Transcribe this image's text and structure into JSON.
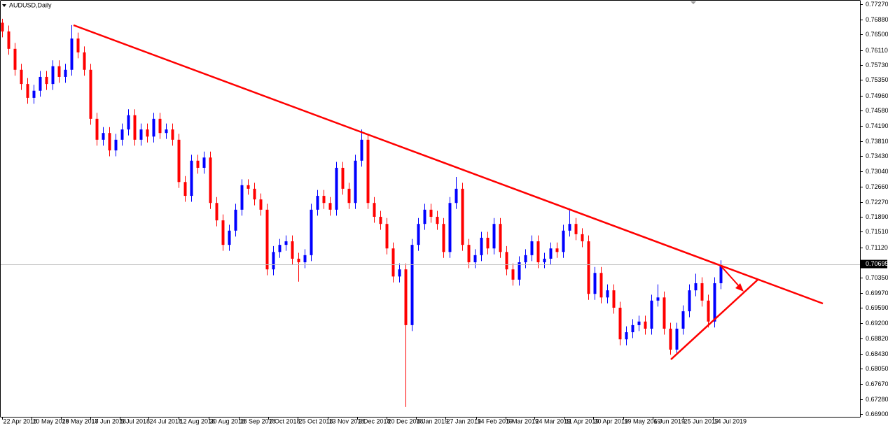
{
  "chart_data": {
    "type": "candlestick",
    "title": "AUDUSD,Daily",
    "up_color": "#0000ff",
    "down_color": "#ff0000",
    "current_price": 0.70695,
    "ylim": [
      0.6683,
      0.7734
    ],
    "xlim": [
      -0.2,
      136.1
    ],
    "yticks": [
      {
        "value": 0.7727,
        "label": "0.77270"
      },
      {
        "value": 0.7688,
        "label": "0.76880"
      },
      {
        "value": 0.765,
        "label": "0.76500"
      },
      {
        "value": 0.7611,
        "label": "0.76110"
      },
      {
        "value": 0.7573,
        "label": "0.75730"
      },
      {
        "value": 0.7535,
        "label": "0.75350"
      },
      {
        "value": 0.7496,
        "label": "0.74960"
      },
      {
        "value": 0.7458,
        "label": "0.74580"
      },
      {
        "value": 0.7419,
        "label": "0.74190"
      },
      {
        "value": 0.7381,
        "label": "0.73810"
      },
      {
        "value": 0.7343,
        "label": "0.73430"
      },
      {
        "value": 0.7304,
        "label": "0.73040"
      },
      {
        "value": 0.7266,
        "label": "0.72660"
      },
      {
        "value": 0.7227,
        "label": "0.72270"
      },
      {
        "value": 0.7189,
        "label": "0.71890"
      },
      {
        "value": 0.7151,
        "label": "0.71510"
      },
      {
        "value": 0.7112,
        "label": "0.71120"
      },
      {
        "value": 0.7035,
        "label": "0.70350"
      },
      {
        "value": 0.6997,
        "label": "0.69970"
      },
      {
        "value": 0.6959,
        "label": "0.69590"
      },
      {
        "value": 0.692,
        "label": "0.69200"
      },
      {
        "value": 0.6882,
        "label": "0.68820"
      },
      {
        "value": 0.6843,
        "label": "0.68430"
      },
      {
        "value": 0.6805,
        "label": "0.68050"
      },
      {
        "value": 0.6767,
        "label": "0.67670"
      },
      {
        "value": 0.6728,
        "label": "0.67280"
      },
      {
        "value": 0.669,
        "label": "0.66900"
      }
    ],
    "xticks": [
      {
        "value": 0,
        "label": "22 Apr 2018"
      },
      {
        "value": 4.7,
        "label": "10 May 2018"
      },
      {
        "value": 9.3,
        "label": "29 May 2018"
      },
      {
        "value": 14,
        "label": "17 Jun 2018"
      },
      {
        "value": 18.7,
        "label": "5 Jul 2018"
      },
      {
        "value": 23.2,
        "label": "24 Jul 2018"
      },
      {
        "value": 28,
        "label": "12 Aug 2018"
      },
      {
        "value": 32.8,
        "label": "30 Aug 2018"
      },
      {
        "value": 37.6,
        "label": "18 Sep 2018"
      },
      {
        "value": 42.2,
        "label": "7 Oct 2018"
      },
      {
        "value": 46.9,
        "label": "25 Oct 2018"
      },
      {
        "value": 51.7,
        "label": "13 Nov 2018"
      },
      {
        "value": 56.3,
        "label": "2 Dec 2018"
      },
      {
        "value": 61,
        "label": "20 Dec 2018"
      },
      {
        "value": 65.7,
        "label": "8 Jan 2019"
      },
      {
        "value": 70.3,
        "label": "27 Jan 2019"
      },
      {
        "value": 75.2,
        "label": "14 Feb 2019"
      },
      {
        "value": 79.9,
        "label": "5 Mar 2019"
      },
      {
        "value": 84.4,
        "label": "24 Mar 2019"
      },
      {
        "value": 89.2,
        "label": "11 Apr 2019"
      },
      {
        "value": 93.8,
        "label": "30 Apr 2019"
      },
      {
        "value": 98.6,
        "label": "19 May 2019"
      },
      {
        "value": 103.2,
        "label": "6 Jun 2019"
      },
      {
        "value": 108,
        "label": "25 Jun 2019"
      },
      {
        "value": 112.8,
        "label": "14 Jul 2019"
      }
    ],
    "ohlc": [
      [
        0.768,
        0.769,
        0.7643,
        0.7658
      ],
      [
        0.7658,
        0.7673,
        0.7599,
        0.7614
      ],
      [
        0.7614,
        0.7629,
        0.7546,
        0.7561
      ],
      [
        0.7561,
        0.7576,
        0.751,
        0.7525
      ],
      [
        0.7525,
        0.754,
        0.7475,
        0.749
      ],
      [
        0.749,
        0.7523,
        0.7475,
        0.7508
      ],
      [
        0.7508,
        0.7558,
        0.7493,
        0.7543
      ],
      [
        0.7543,
        0.7558,
        0.751,
        0.7525
      ],
      [
        0.7525,
        0.7585,
        0.751,
        0.757
      ],
      [
        0.757,
        0.7585,
        0.7528,
        0.7543
      ],
      [
        0.7543,
        0.7576,
        0.7528,
        0.7561
      ],
      [
        0.7561,
        0.7674,
        0.7546,
        0.764
      ],
      [
        0.764,
        0.7655,
        0.759,
        0.7605
      ],
      [
        0.7605,
        0.762,
        0.7546,
        0.7561
      ],
      [
        0.7561,
        0.7576,
        0.7422,
        0.7437
      ],
      [
        0.7437,
        0.7452,
        0.7369,
        0.7384
      ],
      [
        0.7384,
        0.7416,
        0.7369,
        0.7401
      ],
      [
        0.7401,
        0.7416,
        0.7342,
        0.7357
      ],
      [
        0.7357,
        0.7399,
        0.7342,
        0.7384
      ],
      [
        0.7384,
        0.7425,
        0.7369,
        0.741
      ],
      [
        0.741,
        0.7461,
        0.7395,
        0.7446
      ],
      [
        0.7446,
        0.7461,
        0.7369,
        0.7384
      ],
      [
        0.7384,
        0.7425,
        0.7369,
        0.741
      ],
      [
        0.741,
        0.7425,
        0.7377,
        0.7392
      ],
      [
        0.7392,
        0.7452,
        0.7377,
        0.7437
      ],
      [
        0.7437,
        0.7452,
        0.7386,
        0.7401
      ],
      [
        0.7401,
        0.7425,
        0.7386,
        0.741
      ],
      [
        0.741,
        0.7425,
        0.7369,
        0.7384
      ],
      [
        0.7384,
        0.7399,
        0.7262,
        0.7277
      ],
      [
        0.7277,
        0.7292,
        0.7227,
        0.7242
      ],
      [
        0.7242,
        0.7346,
        0.7227,
        0.7331
      ],
      [
        0.7331,
        0.7346,
        0.7298,
        0.7313
      ],
      [
        0.7313,
        0.7354,
        0.7298,
        0.7339
      ],
      [
        0.7339,
        0.7354,
        0.7209,
        0.7224
      ],
      [
        0.7224,
        0.7239,
        0.7165,
        0.718
      ],
      [
        0.718,
        0.7195,
        0.7103,
        0.7118
      ],
      [
        0.7118,
        0.7169,
        0.7103,
        0.7154
      ],
      [
        0.7154,
        0.7222,
        0.7139,
        0.7207
      ],
      [
        0.7207,
        0.7284,
        0.7192,
        0.7269
      ],
      [
        0.7269,
        0.7284,
        0.7245,
        0.726
      ],
      [
        0.726,
        0.7275,
        0.7218,
        0.7233
      ],
      [
        0.7233,
        0.7248,
        0.7192,
        0.7207
      ],
      [
        0.7207,
        0.7222,
        0.7041,
        0.7056
      ],
      [
        0.7056,
        0.7115,
        0.7041,
        0.71
      ],
      [
        0.71,
        0.7133,
        0.7085,
        0.7118
      ],
      [
        0.7118,
        0.7142,
        0.7103,
        0.7127
      ],
      [
        0.7127,
        0.7142,
        0.7068,
        0.7083
      ],
      [
        0.7083,
        0.7098,
        0.7025,
        0.7074
      ],
      [
        0.7074,
        0.7107,
        0.7059,
        0.7092
      ],
      [
        0.7092,
        0.7222,
        0.7077,
        0.7207
      ],
      [
        0.7207,
        0.7257,
        0.7192,
        0.7242
      ],
      [
        0.7242,
        0.7257,
        0.7209,
        0.7224
      ],
      [
        0.7224,
        0.7239,
        0.7192,
        0.7207
      ],
      [
        0.7207,
        0.7328,
        0.7192,
        0.7313
      ],
      [
        0.7313,
        0.7328,
        0.7245,
        0.726
      ],
      [
        0.726,
        0.7275,
        0.7209,
        0.7224
      ],
      [
        0.7224,
        0.7346,
        0.7209,
        0.7331
      ],
      [
        0.7331,
        0.741,
        0.7316,
        0.7384
      ],
      [
        0.7384,
        0.7399,
        0.7209,
        0.7224
      ],
      [
        0.7224,
        0.7239,
        0.7174,
        0.7189
      ],
      [
        0.7189,
        0.7204,
        0.7156,
        0.7171
      ],
      [
        0.7171,
        0.7186,
        0.7094,
        0.7109
      ],
      [
        0.7109,
        0.7124,
        0.7023,
        0.7038
      ],
      [
        0.7038,
        0.7071,
        0.7023,
        0.7056
      ],
      [
        0.7056,
        0.7071,
        0.6708,
        0.6915
      ],
      [
        0.6915,
        0.7133,
        0.69,
        0.7118
      ],
      [
        0.7118,
        0.7186,
        0.7103,
        0.7171
      ],
      [
        0.7171,
        0.7222,
        0.7156,
        0.7207
      ],
      [
        0.7207,
        0.7222,
        0.7174,
        0.7189
      ],
      [
        0.7189,
        0.7204,
        0.7156,
        0.7171
      ],
      [
        0.7171,
        0.7186,
        0.7085,
        0.71
      ],
      [
        0.71,
        0.7239,
        0.7085,
        0.7224
      ],
      [
        0.7224,
        0.729,
        0.7209,
        0.726
      ],
      [
        0.726,
        0.7275,
        0.7103,
        0.7118
      ],
      [
        0.7118,
        0.7133,
        0.7059,
        0.7074
      ],
      [
        0.7074,
        0.7107,
        0.7059,
        0.7092
      ],
      [
        0.7092,
        0.7151,
        0.7077,
        0.7136
      ],
      [
        0.7136,
        0.7151,
        0.7094,
        0.7109
      ],
      [
        0.7109,
        0.7186,
        0.7094,
        0.7171
      ],
      [
        0.7171,
        0.7186,
        0.7085,
        0.71
      ],
      [
        0.71,
        0.7115,
        0.7041,
        0.7056
      ],
      [
        0.7056,
        0.7071,
        0.7015,
        0.703
      ],
      [
        0.703,
        0.7089,
        0.7015,
        0.7074
      ],
      [
        0.7074,
        0.7107,
        0.7059,
        0.7092
      ],
      [
        0.7092,
        0.7142,
        0.7077,
        0.7127
      ],
      [
        0.7127,
        0.7142,
        0.7059,
        0.7074
      ],
      [
        0.7074,
        0.7098,
        0.7059,
        0.7083
      ],
      [
        0.7083,
        0.7124,
        0.7068,
        0.7109
      ],
      [
        0.7109,
        0.7124,
        0.7085,
        0.71
      ],
      [
        0.71,
        0.7169,
        0.7085,
        0.7154
      ],
      [
        0.7154,
        0.721,
        0.7139,
        0.7171
      ],
      [
        0.7171,
        0.7186,
        0.713,
        0.7145
      ],
      [
        0.7145,
        0.716,
        0.7112,
        0.7127
      ],
      [
        0.7127,
        0.7142,
        0.6979,
        0.6994
      ],
      [
        0.6994,
        0.7062,
        0.6979,
        0.7047
      ],
      [
        0.7047,
        0.7062,
        0.697,
        0.6985
      ],
      [
        0.6985,
        0.7018,
        0.697,
        0.7003
      ],
      [
        0.7003,
        0.7018,
        0.6944,
        0.6959
      ],
      [
        0.6959,
        0.6974,
        0.6864,
        0.6879
      ],
      [
        0.6879,
        0.6912,
        0.6864,
        0.6897
      ],
      [
        0.6897,
        0.693,
        0.6882,
        0.6915
      ],
      [
        0.6915,
        0.6939,
        0.69,
        0.6924
      ],
      [
        0.6924,
        0.6939,
        0.6891,
        0.6906
      ],
      [
        0.6906,
        0.6992,
        0.6891,
        0.6977
      ],
      [
        0.6977,
        0.7018,
        0.6962,
        0.6985
      ],
      [
        0.6985,
        0.7,
        0.6891,
        0.6906
      ],
      [
        0.6906,
        0.6921,
        0.684,
        0.6853
      ],
      [
        0.6853,
        0.6921,
        0.684,
        0.6906
      ],
      [
        0.6906,
        0.6965,
        0.6891,
        0.695
      ],
      [
        0.695,
        0.7018,
        0.6935,
        0.7003
      ],
      [
        0.7003,
        0.7045,
        0.6988,
        0.7021
      ],
      [
        0.7021,
        0.7036,
        0.6962,
        0.6977
      ],
      [
        0.6977,
        0.6992,
        0.6909,
        0.6924
      ],
      [
        0.6924,
        0.7036,
        0.6909,
        0.7021
      ],
      [
        0.7021,
        0.7079,
        0.7006,
        0.7065
      ]
    ]
  }
}
